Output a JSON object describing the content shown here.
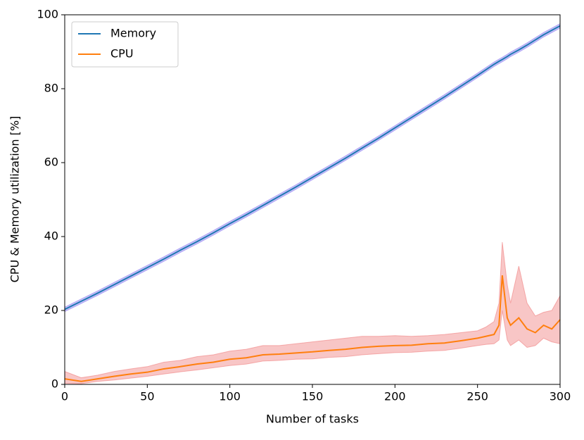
{
  "chart_data": {
    "type": "line",
    "xlabel": "Number of tasks",
    "ylabel": "CPU & Memory utilization [%]",
    "x": [
      0,
      10,
      20,
      30,
      40,
      50,
      60,
      70,
      80,
      90,
      100,
      110,
      120,
      130,
      140,
      150,
      160,
      170,
      180,
      190,
      200,
      210,
      220,
      230,
      240,
      250,
      255,
      260,
      263,
      265,
      268,
      270,
      275,
      280,
      285,
      290,
      295,
      300
    ],
    "series": [
      {
        "name": "Memory",
        "color": "#1f77b4",
        "band_color": "#8a7cf0",
        "values": [
          20.3,
          22.5,
          24.7,
          27.0,
          29.3,
          31.6,
          33.9,
          36.3,
          38.6,
          41.0,
          43.5,
          45.9,
          48.4,
          50.9,
          53.4,
          56.0,
          58.6,
          61.2,
          63.9,
          66.6,
          69.4,
          72.2,
          75.0,
          77.8,
          80.7,
          83.6,
          85.1,
          86.6,
          87.4,
          87.9,
          88.7,
          89.3,
          90.5,
          91.8,
          93.2,
          94.6,
          95.8,
          97.0
        ],
        "band_lower": [
          19.7,
          21.9,
          24.1,
          26.4,
          28.7,
          31.0,
          33.3,
          35.7,
          38.0,
          40.4,
          42.9,
          45.3,
          47.8,
          50.3,
          52.8,
          55.4,
          58.0,
          60.6,
          63.3,
          66.0,
          68.8,
          71.6,
          74.4,
          77.2,
          80.1,
          83.0,
          84.5,
          86.0,
          86.8,
          87.3,
          88.1,
          88.7,
          89.9,
          91.2,
          92.6,
          94.0,
          95.2,
          96.4
        ],
        "band_upper": [
          20.9,
          23.1,
          25.3,
          27.6,
          29.9,
          32.2,
          34.5,
          36.9,
          39.2,
          41.6,
          44.1,
          46.5,
          49.0,
          51.5,
          54.0,
          56.6,
          59.2,
          61.8,
          64.5,
          67.2,
          70.0,
          72.8,
          75.6,
          78.4,
          81.3,
          84.2,
          85.7,
          87.2,
          88.0,
          88.5,
          89.3,
          89.9,
          91.1,
          92.4,
          93.8,
          95.2,
          96.4,
          97.6
        ]
      },
      {
        "name": "CPU",
        "color": "#ff7f0e",
        "band_color": "#f08080",
        "values": [
          1.5,
          0.8,
          1.5,
          2.2,
          2.8,
          3.3,
          4.2,
          4.8,
          5.5,
          6.0,
          6.8,
          7.2,
          8.0,
          8.2,
          8.5,
          8.8,
          9.2,
          9.5,
          10.0,
          10.3,
          10.5,
          10.6,
          11.0,
          11.2,
          11.8,
          12.5,
          13.0,
          13.5,
          16.0,
          29.5,
          18.0,
          16.0,
          18.0,
          15.0,
          14.0,
          16.0,
          15.0,
          17.5
        ],
        "band_lower": [
          0.3,
          0.2,
          0.8,
          1.2,
          1.7,
          2.2,
          2.8,
          3.4,
          3.9,
          4.5,
          5.1,
          5.5,
          6.3,
          6.5,
          6.8,
          6.9,
          7.3,
          7.5,
          8.0,
          8.3,
          8.6,
          8.7,
          9.0,
          9.2,
          9.8,
          10.5,
          10.8,
          11.0,
          12.0,
          20.0,
          12.0,
          10.5,
          12.0,
          10.0,
          10.5,
          12.5,
          11.5,
          11.0
        ],
        "band_upper": [
          3.5,
          1.8,
          2.5,
          3.5,
          4.2,
          4.8,
          6.0,
          6.5,
          7.5,
          8.0,
          9.0,
          9.5,
          10.5,
          10.5,
          11.0,
          11.5,
          12.0,
          12.5,
          13.0,
          13.0,
          13.2,
          13.0,
          13.2,
          13.5,
          14.0,
          14.5,
          15.5,
          17.0,
          22.0,
          38.5,
          27.0,
          22.0,
          32.0,
          22.0,
          18.5,
          19.5,
          20.0,
          24.0
        ]
      }
    ],
    "xlim": [
      0,
      300
    ],
    "xticks": [
      0,
      50,
      100,
      150,
      200,
      250,
      300
    ],
    "ylim": [
      0,
      100
    ],
    "yticks": [
      0,
      20,
      40,
      60,
      80,
      100
    ],
    "legend": "upper left"
  }
}
